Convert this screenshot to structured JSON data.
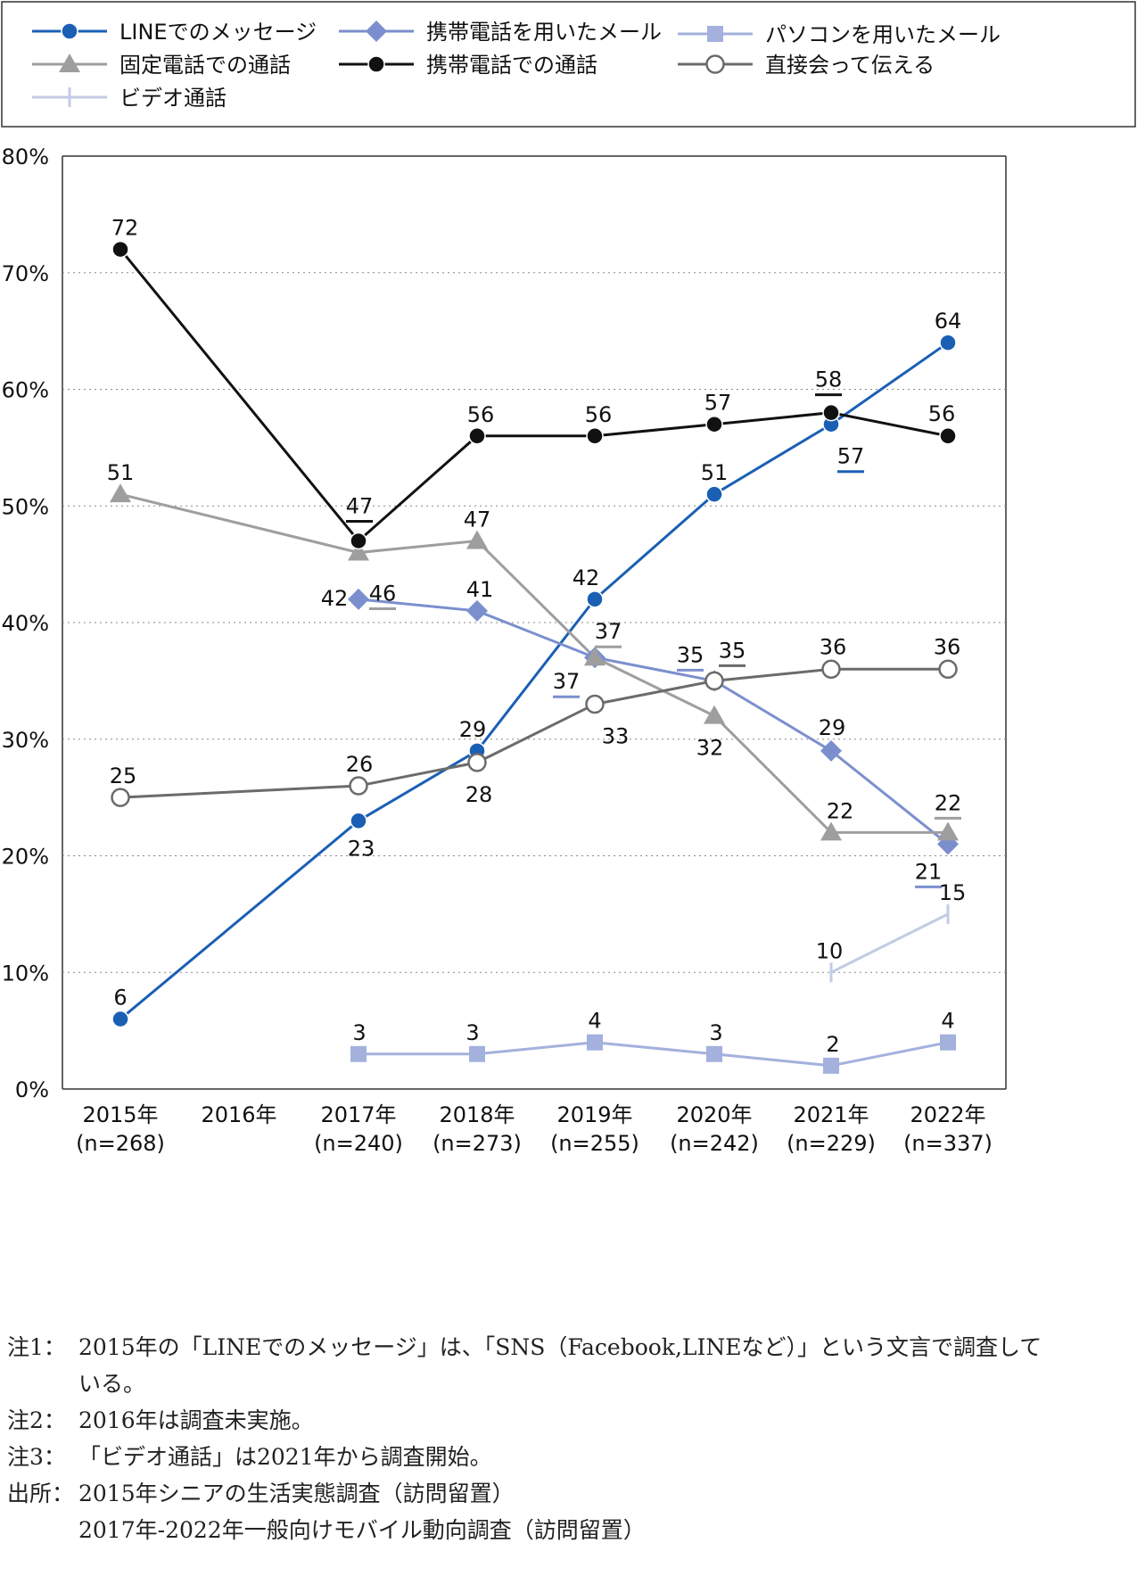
{
  "chart_data": {
    "type": "line",
    "categories": [
      "2015年",
      "2016年",
      "2017年",
      "2018年",
      "2019年",
      "2020年",
      "2021年",
      "2022年"
    ],
    "sample_sizes": [
      "(n=268)",
      "",
      "(n=240)",
      "(n=273)",
      "(n=255)",
      "(n=242)",
      "(n=229)",
      "(n=337)"
    ],
    "y_ticks": [
      "0%",
      "10%",
      "20%",
      "30%",
      "40%",
      "50%",
      "60%",
      "70%",
      "80%"
    ],
    "ylim": [
      0,
      80
    ],
    "unit": "%",
    "grid": "horizontal dotted",
    "legend_position": "top",
    "series": [
      {
        "name": "LINEでのメッセージ",
        "color": "#1a5fb4",
        "marker": "circle",
        "values": [
          6,
          null,
          23,
          29,
          42,
          51,
          57,
          64
        ]
      },
      {
        "name": "携帯電話を用いたメール",
        "color": "#7b8fce",
        "marker": "diamond",
        "values": [
          null,
          null,
          42,
          41,
          37,
          35,
          29,
          21
        ]
      },
      {
        "name": "パソコンを用いたメール",
        "color": "#a3b1dc",
        "marker": "square",
        "values": [
          null,
          null,
          3,
          3,
          4,
          3,
          2,
          4
        ]
      },
      {
        "name": "固定電話での通話",
        "color": "#9e9e9e",
        "marker": "triangle",
        "values": [
          51,
          null,
          46,
          47,
          37,
          32,
          22,
          22
        ]
      },
      {
        "name": "携帯電話での通話",
        "color": "#111111",
        "marker": "circle",
        "values": [
          72,
          null,
          47,
          56,
          56,
          57,
          58,
          56
        ]
      },
      {
        "name": "直接会って伝える",
        "color": "#6b6b6b",
        "marker": "open-circle",
        "values": [
          25,
          null,
          26,
          28,
          33,
          35,
          36,
          36
        ]
      },
      {
        "name": "ビデオ通話",
        "color": "#c3cbe6",
        "marker": "tick",
        "values": [
          null,
          null,
          null,
          null,
          null,
          null,
          10,
          15
        ]
      }
    ]
  },
  "notes": [
    {
      "label": "注1：",
      "text": "2015年の「LINEでのメッセージ」は、「SNS（Facebook,LINEなど）」という文言で調査して",
      "cont": "いる。"
    },
    {
      "label": "注2：",
      "text": "2016年は調査未実施。"
    },
    {
      "label": "注3：",
      "text": "「ビデオ通話」は2021年から調査開始。"
    },
    {
      "label": "出所：",
      "text": "2015年シニアの生活実態調査（訪問留置）",
      "cont": "2017年-2022年一般向けモバイル動向調査（訪問留置）"
    }
  ]
}
